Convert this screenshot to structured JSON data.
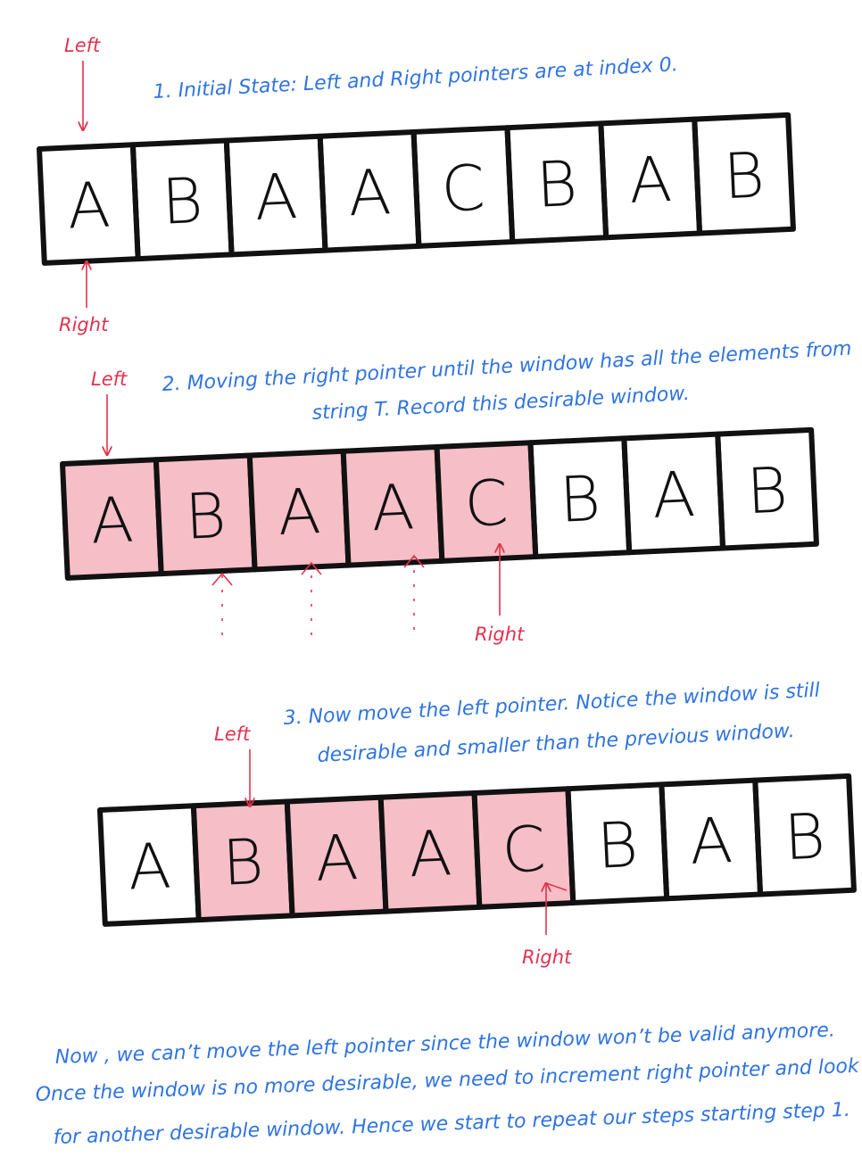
{
  "step1": {
    "caption": "1. Initial State: Left and Right pointers are at index 0.",
    "letters": [
      "A",
      "B",
      "A",
      "A",
      "C",
      "B",
      "A",
      "B"
    ],
    "highlight": [],
    "left_label": "Left",
    "right_label": "Right",
    "left_index": 0,
    "right_index": 0
  },
  "step2": {
    "caption_line1": "2. Moving the right pointer until the window has all the elements from",
    "caption_line2": "string T. Record this desirable window.",
    "letters": [
      "A",
      "B",
      "A",
      "A",
      "C",
      "B",
      "A",
      "B"
    ],
    "highlight": [
      0,
      1,
      2,
      3,
      4
    ],
    "left_label": "Left",
    "right_label": "Right",
    "left_index": 0,
    "right_index": 4,
    "trail_indices": [
      1,
      2,
      3
    ]
  },
  "step3": {
    "caption_line1": "3. Now move the left pointer. Notice the window is still",
    "caption_line2": "desirable and smaller than the previous window.",
    "letters": [
      "A",
      "B",
      "A",
      "A",
      "C",
      "B",
      "A",
      "B"
    ],
    "highlight": [
      1,
      2,
      3,
      4
    ],
    "left_label": "Left",
    "right_label": "Right",
    "left_index": 1,
    "right_index": 4
  },
  "footer": {
    "line1": "Now , we can’t move the left pointer since the window won’t be valid anymore.",
    "line2": "Once the window is no more desirable, we need to increment right pointer and look",
    "line3": "for another desirable window. Hence we start to repeat our steps starting step 1."
  },
  "colors": {
    "caption": "#2f74e0",
    "pointer": "#e0334e",
    "highlight": "#f4b3bd",
    "cell_stroke": "#111111"
  }
}
